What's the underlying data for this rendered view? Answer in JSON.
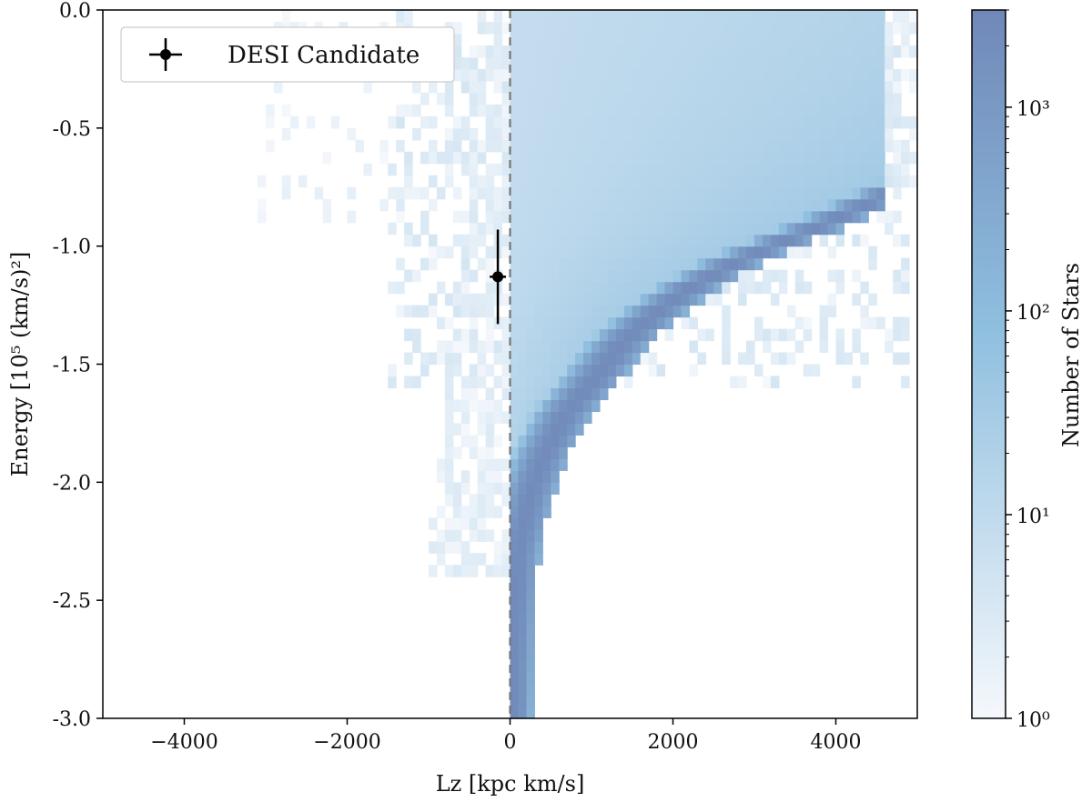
{
  "chart_data": {
    "type": "heatmap",
    "title": "",
    "xlabel": "Lz [kpc km/s]",
    "ylabel": "Energy [10⁵ (km/s)²]",
    "xlim": [
      -5000,
      5000
    ],
    "ylim": [
      -3.0,
      0.0
    ],
    "x_ticks": [
      "−4000",
      "−2000",
      "0",
      "2000",
      "4000"
    ],
    "x_tick_values": [
      -4000,
      -2000,
      0,
      2000,
      4000
    ],
    "y_ticks": [
      "0.0",
      "-0.5",
      "-1.0",
      "-1.5",
      "-2.0",
      "-2.5",
      "-3.0"
    ],
    "y_tick_values": [
      0.0,
      -0.5,
      -1.0,
      -1.5,
      -2.0,
      -2.5,
      -3.0
    ],
    "colorbar": {
      "label": "Number of Stars",
      "scale": "log",
      "range": [
        1,
        3000
      ],
      "ticks": [
        "10⁰",
        "10¹",
        "10²",
        "10³"
      ],
      "tick_values": [
        1,
        10,
        100,
        1000
      ],
      "color_low": "#f5f8fc",
      "color_mid": "#8fbfdf",
      "color_high": "#7088b8"
    },
    "reference_line": {
      "x": 0,
      "style": "dashed",
      "color": "#777777"
    },
    "ridge": [
      {
        "lz": 50,
        "e": -2.95
      },
      {
        "lz": 60,
        "e": -2.6
      },
      {
        "lz": 100,
        "e": -2.3
      },
      {
        "lz": 250,
        "e": -2.05
      },
      {
        "lz": 400,
        "e": -1.9
      },
      {
        "lz": 700,
        "e": -1.7
      },
      {
        "lz": 1000,
        "e": -1.58
      },
      {
        "lz": 1400,
        "e": -1.4
      },
      {
        "lz": 1800,
        "e": -1.28
      },
      {
        "lz": 2200,
        "e": -1.18
      },
      {
        "lz": 2700,
        "e": -1.08
      },
      {
        "lz": 3200,
        "e": -1.0
      },
      {
        "lz": 3700,
        "e": -0.93
      },
      {
        "lz": 4200,
        "e": -0.85
      }
    ],
    "series": [
      {
        "name": "DESI Candidate",
        "type": "errorbar",
        "x": -150,
        "y": -1.13,
        "xerr": 100,
        "yerr": 0.2,
        "color": "#000000"
      }
    ],
    "legend_position": "upper-left"
  }
}
